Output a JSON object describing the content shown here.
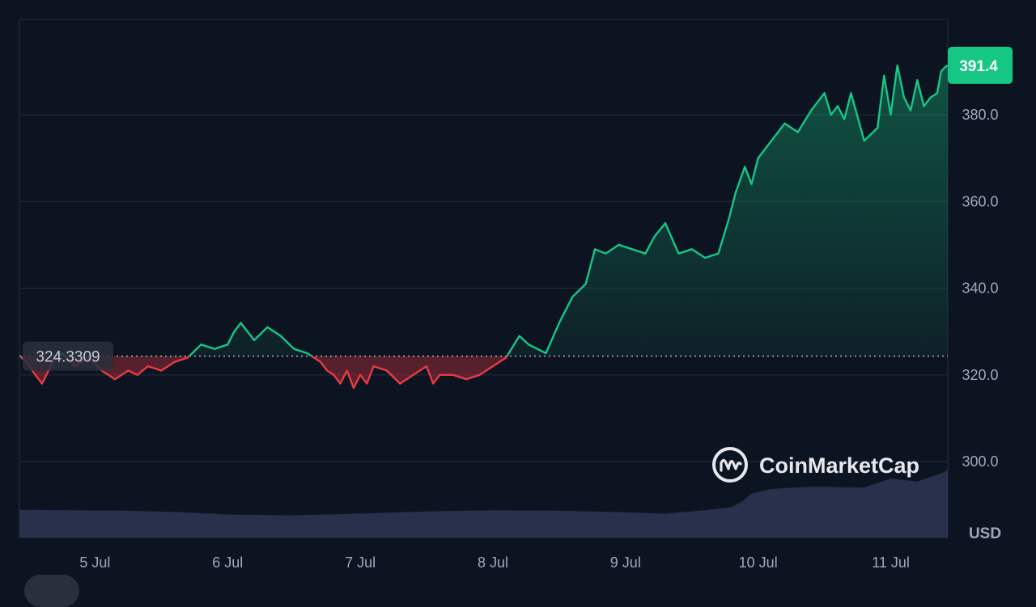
{
  "chart_data": {
    "type": "line",
    "currency_label": "USD",
    "x_ticks": [
      "5 Jul",
      "6 Jul",
      "7 Jul",
      "8 Jul",
      "9 Jul",
      "10 Jul",
      "11 Jul"
    ],
    "y_ticks": [
      "300.0",
      "320.0",
      "340.0",
      "360.0",
      "380.0"
    ],
    "ylim": [
      282.5,
      402.0
    ],
    "baseline_value": 324.3309,
    "baseline_label": "324.3309",
    "current_value": 391.4,
    "current_label": "391.4",
    "grid": true,
    "price_series": {
      "x": [
        4.43,
        4.48,
        4.55,
        4.6,
        4.7,
        4.75,
        4.85,
        4.95,
        5.05,
        5.15,
        5.25,
        5.32,
        5.4,
        5.5,
        5.6,
        5.7,
        5.8,
        5.9,
        6,
        6.05,
        6.1,
        6.2,
        6.3,
        6.4,
        6.5,
        6.6,
        6.7,
        6.75,
        6.8,
        6.85,
        6.9,
        6.95,
        7,
        7.05,
        7.1,
        7.2,
        7.3,
        7.4,
        7.5,
        7.55,
        7.6,
        7.7,
        7.8,
        7.9,
        8,
        8.1,
        8.2,
        8.27,
        8.4,
        8.5,
        8.6,
        8.7,
        8.77,
        8.85,
        8.95,
        9.05,
        9.15,
        9.22,
        9.3,
        9.4,
        9.5,
        9.6,
        9.7,
        9.78,
        9.83,
        9.9,
        9.95,
        10,
        10.1,
        10.2,
        10.3,
        10.4,
        10.5,
        10.55,
        10.6,
        10.65,
        10.7,
        10.8,
        10.9,
        10.95,
        11,
        11.05,
        11.1,
        11.15,
        11.2,
        11.25,
        11.3,
        11.35,
        11.38,
        11.41,
        11.43
      ],
      "y": [
        324.5,
        323,
        320,
        318,
        324,
        325,
        322,
        324,
        321,
        319,
        321,
        320,
        322,
        321,
        323,
        324,
        327,
        326,
        327,
        330,
        332,
        328,
        331,
        329,
        326,
        325,
        323,
        321,
        320,
        318,
        321,
        317,
        320,
        318,
        322,
        321,
        318,
        320,
        322,
        318,
        320,
        320,
        319,
        320,
        322,
        324,
        329,
        327,
        325,
        332,
        338,
        341,
        349,
        348,
        350,
        349,
        348,
        352,
        355,
        348,
        349,
        347,
        348,
        356,
        362,
        368,
        364,
        370,
        374,
        378,
        376,
        381,
        385,
        380,
        382,
        379,
        385,
        374,
        377,
        389,
        380,
        391.4,
        384,
        381,
        388,
        382,
        384,
        385,
        390,
        391,
        391.4
      ]
    },
    "volume_series": {
      "x": [
        4.43,
        5.2,
        5.6,
        6.0,
        6.5,
        7.0,
        7.5,
        8.0,
        8.5,
        9.0,
        9.3,
        9.6,
        9.8,
        9.88,
        9.95,
        10.1,
        10.4,
        10.8,
        11.0,
        11.2,
        11.4,
        11.43
      ],
      "y": [
        288.9,
        288.7,
        288.4,
        287.8,
        287.6,
        288.0,
        288.5,
        288.8,
        288.7,
        288.3,
        288.0,
        288.8,
        289.5,
        290.8,
        292.6,
        293.7,
        294.2,
        294.0,
        296.1,
        295.4,
        297.5,
        298.2
      ]
    }
  },
  "watermark": {
    "text": "CoinMarketCap",
    "icon": "coinmarketcap-logo-icon"
  },
  "colors": {
    "background": "#0d1421",
    "up": "#16c784",
    "down": "#ea3943",
    "grid": "#262c3a",
    "badge": "#16c784",
    "volume": "#2e3553"
  }
}
